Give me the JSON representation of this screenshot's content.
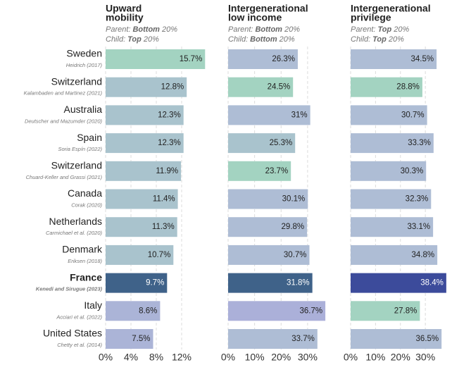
{
  "chart_data": [
    {
      "type": "bar",
      "orientation": "horizontal",
      "title": [
        "Upward",
        "mobility"
      ],
      "subtitle": [
        [
          "Parent:",
          "Bottom",
          "20%"
        ],
        [
          "Child:",
          "Top",
          "20%"
        ]
      ],
      "categories": [
        "Sweden",
        "Switzerland",
        "Australia",
        "Spain",
        "Switzerland",
        "Canada",
        "Netherlands",
        "Denmark",
        "France",
        "Italy",
        "United States"
      ],
      "sources": [
        "Heidrich (2017)",
        "Kalambaden and Martinez (2021)",
        "Deutscher and Mazumder (2020)",
        "Soria Espín (2022)",
        "Chuard-Keller and Grassi (2021)",
        "Corak (2020)",
        "Carmichael et al. (2020)",
        "Eriksen (2018)",
        "Kenedi and Sirugue (2023)",
        "Acciari et al. (2022)",
        "Chetty et al. (2014)"
      ],
      "highlight": "France",
      "values": [
        15.7,
        12.8,
        12.3,
        12.3,
        11.9,
        11.4,
        11.3,
        10.7,
        9.7,
        8.6,
        7.5
      ],
      "value_labels": [
        "15.7%",
        "12.8%",
        "12.3%",
        "12.3%",
        "11.9%",
        "11.4%",
        "11.3%",
        "10.7%",
        "9.7%",
        "8.6%",
        "7.5%"
      ],
      "colors": [
        "#a3d3c1",
        "#a9c3cd",
        "#a9c3cd",
        "#a9c3cd",
        "#a9c3cd",
        "#a9c3cd",
        "#a9c3cd",
        "#a9c3cd",
        "#3f6289",
        "#abb4d7",
        "#abb4d7"
      ],
      "xlim": [
        0,
        16
      ],
      "xticks": [
        {
          "value": 0,
          "label": "0%"
        },
        {
          "value": 4,
          "label": "4%"
        },
        {
          "value": 8,
          "label": "8%"
        },
        {
          "value": 12,
          "label": "12%"
        }
      ],
      "grid": true
    },
    {
      "type": "bar",
      "orientation": "horizontal",
      "title": [
        "Intergenerational",
        "low income"
      ],
      "subtitle": [
        [
          "Parent:",
          "Bottom",
          "20%"
        ],
        [
          "Child:",
          "Bottom",
          "20%"
        ]
      ],
      "values": [
        26.3,
        24.5,
        31,
        25.3,
        23.7,
        30.1,
        29.8,
        30.7,
        31.8,
        36.7,
        33.7
      ],
      "value_labels": [
        "26.3%",
        "24.5%",
        "31%",
        "25.3%",
        "23.7%",
        "30.1%",
        "29.8%",
        "30.7%",
        "31.8%",
        "36.7%",
        "33.7%"
      ],
      "colors": [
        "#aebdd5",
        "#a3d3c1",
        "#aebdd5",
        "#a9c3cd",
        "#a3d3c1",
        "#aebdd5",
        "#aebdd5",
        "#aebdd5",
        "#3f6289",
        "#abb0d9",
        "#aebdd5"
      ],
      "xlim": [
        0,
        38
      ],
      "xticks": [
        {
          "value": 0,
          "label": "0%"
        },
        {
          "value": 10,
          "label": "10%"
        },
        {
          "value": 20,
          "label": "20%"
        },
        {
          "value": 30,
          "label": "30%"
        }
      ],
      "grid": true
    },
    {
      "type": "bar",
      "orientation": "horizontal",
      "title": [
        "Intergenerational",
        "privilege"
      ],
      "subtitle": [
        [
          "Parent:",
          "Top",
          "20%"
        ],
        [
          "Child:",
          "Top",
          "20%"
        ]
      ],
      "values": [
        34.5,
        28.8,
        30.7,
        33.3,
        30.3,
        32.3,
        33.1,
        34.8,
        38.4,
        27.8,
        36.5
      ],
      "value_labels": [
        "34.5%",
        "28.8%",
        "30.7%",
        "33.3%",
        "30.3%",
        "32.3%",
        "33.1%",
        "34.8%",
        "38.4%",
        "27.8%",
        "36.5%"
      ],
      "colors": [
        "#aebdd5",
        "#a3d3c1",
        "#aebdd5",
        "#aebdd5",
        "#aebdd5",
        "#aebdd5",
        "#aebdd5",
        "#aebdd5",
        "#3c4b9b",
        "#a3d3c1",
        "#aebdd5"
      ],
      "xlim": [
        0,
        39
      ],
      "xticks": [
        {
          "value": 0,
          "label": "0%"
        },
        {
          "value": 10,
          "label": "10%"
        },
        {
          "value": 20,
          "label": "20%"
        },
        {
          "value": 30,
          "label": "30%"
        }
      ],
      "grid": true
    }
  ]
}
